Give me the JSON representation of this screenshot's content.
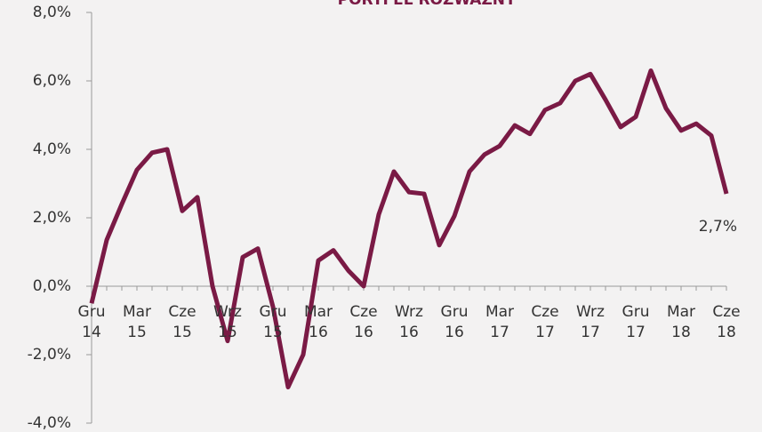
{
  "chart_data": {
    "type": "line",
    "title": "PORTFEL ROZWAŻNY",
    "categories": [
      "Gru\n14",
      null,
      null,
      "Mar\n15",
      null,
      null,
      "Cze\n15",
      null,
      null,
      "Wrz\n15",
      null,
      null,
      "Gru\n15",
      null,
      null,
      "Mar\n16",
      null,
      null,
      "Cze\n16",
      null,
      null,
      "Wrz\n16",
      null,
      null,
      "Gru\n16",
      null,
      null,
      "Mar\n17",
      null,
      null,
      "Cze\n17",
      null,
      null,
      "Wrz\n17",
      null,
      null,
      "Gru\n17",
      null,
      null,
      "Mar\n18",
      null,
      null,
      "Cze\n18"
    ],
    "series": [
      {
        "name": "Portfel rozważny",
        "color": "#7a1a45",
        "values": [
          -0.5,
          1.35,
          2.4,
          3.4,
          3.9,
          4.0,
          2.2,
          2.6,
          0.0,
          -1.6,
          0.85,
          1.1,
          -0.6,
          -2.95,
          -2.0,
          0.75,
          1.05,
          0.45,
          0.0,
          2.1,
          3.35,
          2.75,
          2.7,
          1.2,
          2.05,
          3.35,
          3.85,
          4.1,
          4.7,
          4.45,
          5.15,
          5.35,
          6.0,
          6.2,
          5.45,
          4.65,
          4.95,
          6.3,
          5.2,
          4.55,
          4.75,
          4.4,
          2.7
        ],
        "value_labels": [
          null,
          null,
          null,
          null,
          null,
          null,
          null,
          null,
          null,
          null,
          null,
          null,
          null,
          null,
          null,
          null,
          null,
          null,
          null,
          null,
          null,
          null,
          null,
          null,
          null,
          null,
          null,
          null,
          null,
          null,
          null,
          null,
          null,
          null,
          null,
          null,
          null,
          null,
          null,
          null,
          null,
          null,
          "2,7%"
        ]
      }
    ],
    "ylim": [
      -4,
      8
    ],
    "yticks": [
      {
        "value": -4,
        "label": "-4,0%"
      },
      {
        "value": -2,
        "label": "-2,0%"
      },
      {
        "value": 0,
        "label": "0,0%"
      },
      {
        "value": 2,
        "label": "2,0%"
      },
      {
        "value": 4,
        "label": "4,0%"
      },
      {
        "value": 6,
        "label": "6,0%"
      },
      {
        "value": 8,
        "label": "8,0%"
      }
    ]
  }
}
